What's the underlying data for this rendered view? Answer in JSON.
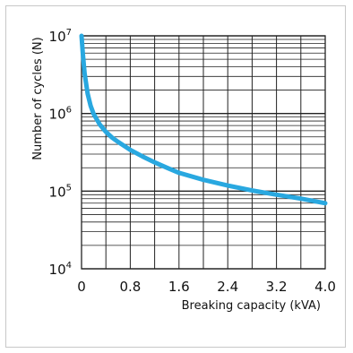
{
  "chart_data": {
    "type": "line",
    "title": "",
    "xlabel": "Breaking capacity (kVA)",
    "ylabel": "Number of cycles (N)",
    "xlim": [
      0,
      4.0
    ],
    "ylim": [
      10000,
      10000000
    ],
    "y_scale": "log",
    "grid": true,
    "x_ticks": [
      "0",
      "0.8",
      "1.6",
      "2.4",
      "3.2",
      "4.0"
    ],
    "y_ticks": [
      {
        "base": "10",
        "exp": "4"
      },
      {
        "base": "10",
        "exp": "5"
      },
      {
        "base": "10",
        "exp": "6"
      },
      {
        "base": "10",
        "exp": "7"
      }
    ],
    "series": [
      {
        "color": "#29a8e0",
        "x": [
          0.0,
          0.02,
          0.05,
          0.1,
          0.15,
          0.2,
          0.3,
          0.4,
          0.5,
          0.6,
          0.8,
          1.0,
          1.2,
          1.4,
          1.6,
          2.0,
          2.4,
          2.8,
          3.2,
          3.6,
          4.0
        ],
        "y": [
          10000000,
          6000000,
          3300000,
          1800000,
          1250000,
          980000,
          720000,
          580000,
          490000,
          430000,
          340000,
          280000,
          235000,
          200000,
          172000,
          140000,
          118000,
          102000,
          90000,
          80000,
          70000
        ]
      }
    ]
  }
}
